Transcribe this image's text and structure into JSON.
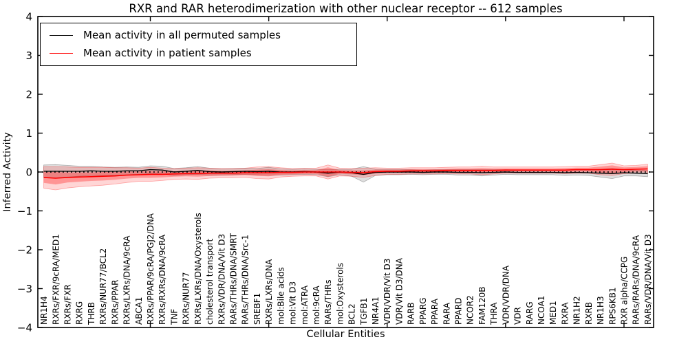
{
  "chart_data": {
    "type": "line",
    "title": "RXR and RAR heterodimerization with other nuclear receptor -- 612 samples",
    "xlabel": "Cellular Entities",
    "ylabel": "Inferred Activity",
    "ylim": [
      -4,
      4
    ],
    "yticks": [
      -4,
      -3,
      -2,
      -1,
      0,
      1,
      2,
      3,
      4
    ],
    "xtick_positions": [
      10,
      20,
      30,
      40,
      50
    ],
    "grid": false,
    "legend_position": "upper left",
    "zero_line": {
      "y": 0,
      "style": "dotted",
      "color": "#000000"
    },
    "categories": [
      "NR1H4",
      "RXRs/FXR/9cRA/MED1",
      "RXRs/FXR",
      "RXRG",
      "THRB",
      "RXRs/NUR77/BCL2",
      "RXRs/PPAR",
      "RXRs/LXRs/DNA/9cRA",
      "ABCA1",
      "RXRs/PPAR/9cRA/PGJ2/DNA",
      "RXRs/RXRs/DNA/9cRA",
      "TNF",
      "RXRs/NUR77",
      "RXRs/LXRs/DNA/Oxysterols",
      "cholesterol transport",
      "RXRs/VDR/DNA/Vit D3",
      "RARs/THRs/DNA/SMRT",
      "RARs/THRs/DNA/Src-1",
      "SREBF1",
      "RXRs/LXRs/DNA",
      "mol:Bile acids",
      "mol:Vit D3",
      "mol:ATRA",
      "mol:9cRA",
      "RARs/THRs",
      "mol:Oxysterols",
      "BCL2",
      "TGFB1",
      "NR4A1",
      "VDR/VDR/Vit D3",
      "VDR/Vit D3/DNA",
      "RARB",
      "PPARG",
      "PPARA",
      "RARA",
      "PPARD",
      "NCOR2",
      "FAM120B",
      "THRA",
      "VDR/VDR/DNA",
      "VDR",
      "RARG",
      "NCOA1",
      "MED1",
      "RXRA",
      "NR1H2",
      "RXRB",
      "NR1H3",
      "RPS6KB1",
      "RXR alpha/CCPG",
      "RARs/RARs/DNA/9cRA",
      "RARs/VDR/DNA/Vit D3"
    ],
    "series": [
      {
        "name": "Mean activity in all permuted samples",
        "color": "#000000",
        "band_color": "#aaaaaa",
        "values": [
          0.02,
          0.02,
          0.02,
          0.02,
          0.03,
          0.02,
          0.02,
          0.03,
          0.03,
          0.06,
          0.05,
          0.0,
          0.02,
          0.04,
          0.01,
          0.0,
          0.01,
          0.02,
          0.01,
          0.02,
          0.0,
          0.0,
          0.01,
          0.0,
          -0.03,
          0.0,
          -0.02,
          -0.06,
          -0.01,
          0.0,
          0.0,
          0.0,
          -0.01,
          0.0,
          0.0,
          -0.01,
          -0.01,
          -0.02,
          -0.01,
          0.0,
          -0.01,
          -0.01,
          -0.01,
          -0.01,
          -0.02,
          -0.01,
          -0.02,
          -0.03,
          -0.04,
          -0.02,
          -0.03,
          -0.04
        ],
        "band_halfwidth": [
          0.16,
          0.17,
          0.15,
          0.13,
          0.12,
          0.11,
          0.1,
          0.1,
          0.09,
          0.1,
          0.1,
          0.09,
          0.09,
          0.1,
          0.09,
          0.08,
          0.08,
          0.08,
          0.08,
          0.1,
          0.08,
          0.07,
          0.07,
          0.07,
          0.09,
          0.07,
          0.09,
          0.2,
          0.08,
          0.07,
          0.07,
          0.06,
          0.06,
          0.06,
          0.06,
          0.07,
          0.07,
          0.08,
          0.07,
          0.06,
          0.06,
          0.06,
          0.06,
          0.06,
          0.07,
          0.07,
          0.07,
          0.1,
          0.13,
          0.08,
          0.07,
          0.08
        ]
      },
      {
        "name": "Mean activity in patient samples",
        "color": "#ff0000",
        "band_color": "#ff0000",
        "values": [
          -0.14,
          -0.16,
          -0.14,
          -0.13,
          -0.12,
          -0.11,
          -0.1,
          -0.08,
          -0.07,
          -0.06,
          -0.06,
          -0.05,
          -0.04,
          -0.04,
          -0.03,
          -0.03,
          -0.03,
          -0.02,
          -0.02,
          -0.02,
          -0.01,
          -0.01,
          0.0,
          0.0,
          0.0,
          0.0,
          -0.01,
          -0.02,
          0.01,
          0.02,
          0.02,
          0.03,
          0.03,
          0.03,
          0.04,
          0.04,
          0.04,
          0.04,
          0.04,
          0.05,
          0.05,
          0.05,
          0.05,
          0.05,
          0.05,
          0.06,
          0.06,
          0.06,
          0.07,
          0.06,
          0.07,
          0.08
        ],
        "band_halfwidth": [
          0.14,
          0.16,
          0.13,
          0.12,
          0.11,
          0.11,
          0.1,
          0.09,
          0.08,
          0.09,
          0.08,
          0.07,
          0.07,
          0.08,
          0.07,
          0.06,
          0.06,
          0.06,
          0.08,
          0.09,
          0.06,
          0.05,
          0.05,
          0.05,
          0.12,
          0.05,
          0.05,
          0.06,
          0.05,
          0.04,
          0.04,
          0.04,
          0.04,
          0.04,
          0.04,
          0.05,
          0.05,
          0.06,
          0.05,
          0.04,
          0.04,
          0.04,
          0.04,
          0.04,
          0.05,
          0.05,
          0.05,
          0.08,
          0.1,
          0.06,
          0.06,
          0.07
        ],
        "band_outer_halfwidth": [
          0.28,
          0.3,
          0.27,
          0.25,
          0.24,
          0.23,
          0.21,
          0.19,
          0.17,
          0.18,
          0.16,
          0.14,
          0.14,
          0.15,
          0.13,
          0.12,
          0.12,
          0.12,
          0.15,
          0.16,
          0.12,
          0.1,
          0.1,
          0.1,
          0.18,
          0.1,
          0.1,
          0.12,
          0.1,
          0.08,
          0.08,
          0.08,
          0.08,
          0.08,
          0.08,
          0.09,
          0.09,
          0.11,
          0.09,
          0.08,
          0.08,
          0.08,
          0.08,
          0.08,
          0.09,
          0.09,
          0.09,
          0.13,
          0.16,
          0.1,
          0.1,
          0.12
        ]
      }
    ]
  }
}
